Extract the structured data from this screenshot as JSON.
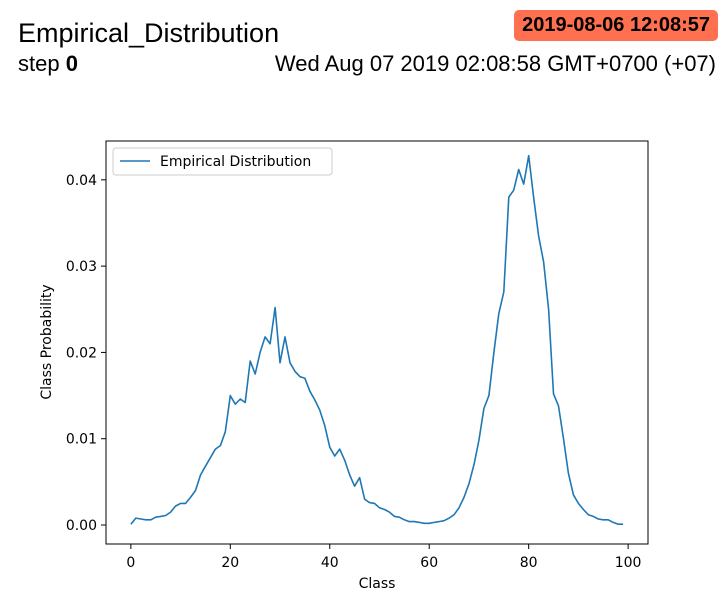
{
  "header": {
    "title": "Empirical_Distribution",
    "step_label": "step",
    "step_value": "0",
    "timestamp_badge": "2019-08-06 12:08:57",
    "wall_time": "Wed Aug 07 2019 02:08:58 GMT+0700 (+07)",
    "badge_color": "#ff7050"
  },
  "chart_data": {
    "type": "line",
    "xlabel": "Class",
    "ylabel": "Class Probability",
    "xlim": [
      -5,
      104
    ],
    "ylim": [
      -0.0022,
      0.0445
    ],
    "xticks": [
      0,
      20,
      40,
      60,
      80,
      100
    ],
    "xtick_labels": [
      "0",
      "20",
      "40",
      "60",
      "80",
      "100"
    ],
    "yticks": [
      0.0,
      0.01,
      0.02,
      0.03,
      0.04
    ],
    "ytick_labels": [
      "0.00",
      "0.01",
      "0.02",
      "0.03",
      "0.04"
    ],
    "grid": false,
    "legend_position": "upper-left",
    "series": [
      {
        "name": "Empirical Distribution",
        "color": "#1f77b4",
        "x": [
          0,
          1,
          2,
          3,
          4,
          5,
          6,
          7,
          8,
          9,
          10,
          11,
          12,
          13,
          14,
          15,
          16,
          17,
          18,
          19,
          20,
          21,
          22,
          23,
          24,
          25,
          26,
          27,
          28,
          29,
          30,
          31,
          32,
          33,
          34,
          35,
          36,
          37,
          38,
          39,
          40,
          41,
          42,
          43,
          44,
          45,
          46,
          47,
          48,
          49,
          50,
          51,
          52,
          53,
          54,
          55,
          56,
          57,
          58,
          59,
          60,
          61,
          62,
          63,
          64,
          65,
          66,
          67,
          68,
          69,
          70,
          71,
          72,
          73,
          74,
          75,
          76,
          77,
          78,
          79,
          80,
          81,
          82,
          83,
          84,
          85,
          86,
          87,
          88,
          89,
          90,
          91,
          92,
          93,
          94,
          95,
          96,
          97,
          98,
          99
        ],
        "y": [
          0.0001,
          0.0008,
          0.0007,
          0.0006,
          0.0006,
          0.0009,
          0.001,
          0.0011,
          0.0015,
          0.0022,
          0.0025,
          0.0025,
          0.0032,
          0.004,
          0.0058,
          0.0068,
          0.0078,
          0.0088,
          0.0092,
          0.0108,
          0.015,
          0.014,
          0.0146,
          0.0142,
          0.019,
          0.0175,
          0.02,
          0.0218,
          0.021,
          0.0252,
          0.0188,
          0.0218,
          0.0188,
          0.0178,
          0.0172,
          0.017,
          0.0155,
          0.0145,
          0.0133,
          0.0115,
          0.009,
          0.008,
          0.0088,
          0.0075,
          0.0058,
          0.0045,
          0.0055,
          0.003,
          0.0026,
          0.0025,
          0.002,
          0.0018,
          0.0015,
          0.001,
          0.0009,
          0.0006,
          0.0004,
          0.0004,
          0.0003,
          0.0002,
          0.0002,
          0.0003,
          0.0004,
          0.0005,
          0.0008,
          0.0012,
          0.002,
          0.0032,
          0.0048,
          0.007,
          0.0098,
          0.0135,
          0.015,
          0.02,
          0.0245,
          0.027,
          0.038,
          0.0388,
          0.0412,
          0.0395,
          0.0428,
          0.038,
          0.0335,
          0.0305,
          0.025,
          0.0152,
          0.0138,
          0.01,
          0.006,
          0.0035,
          0.0025,
          0.0018,
          0.0012,
          0.001,
          0.0007,
          0.0006,
          0.0006,
          0.0003,
          0.0001,
          0.0001
        ]
      }
    ]
  }
}
